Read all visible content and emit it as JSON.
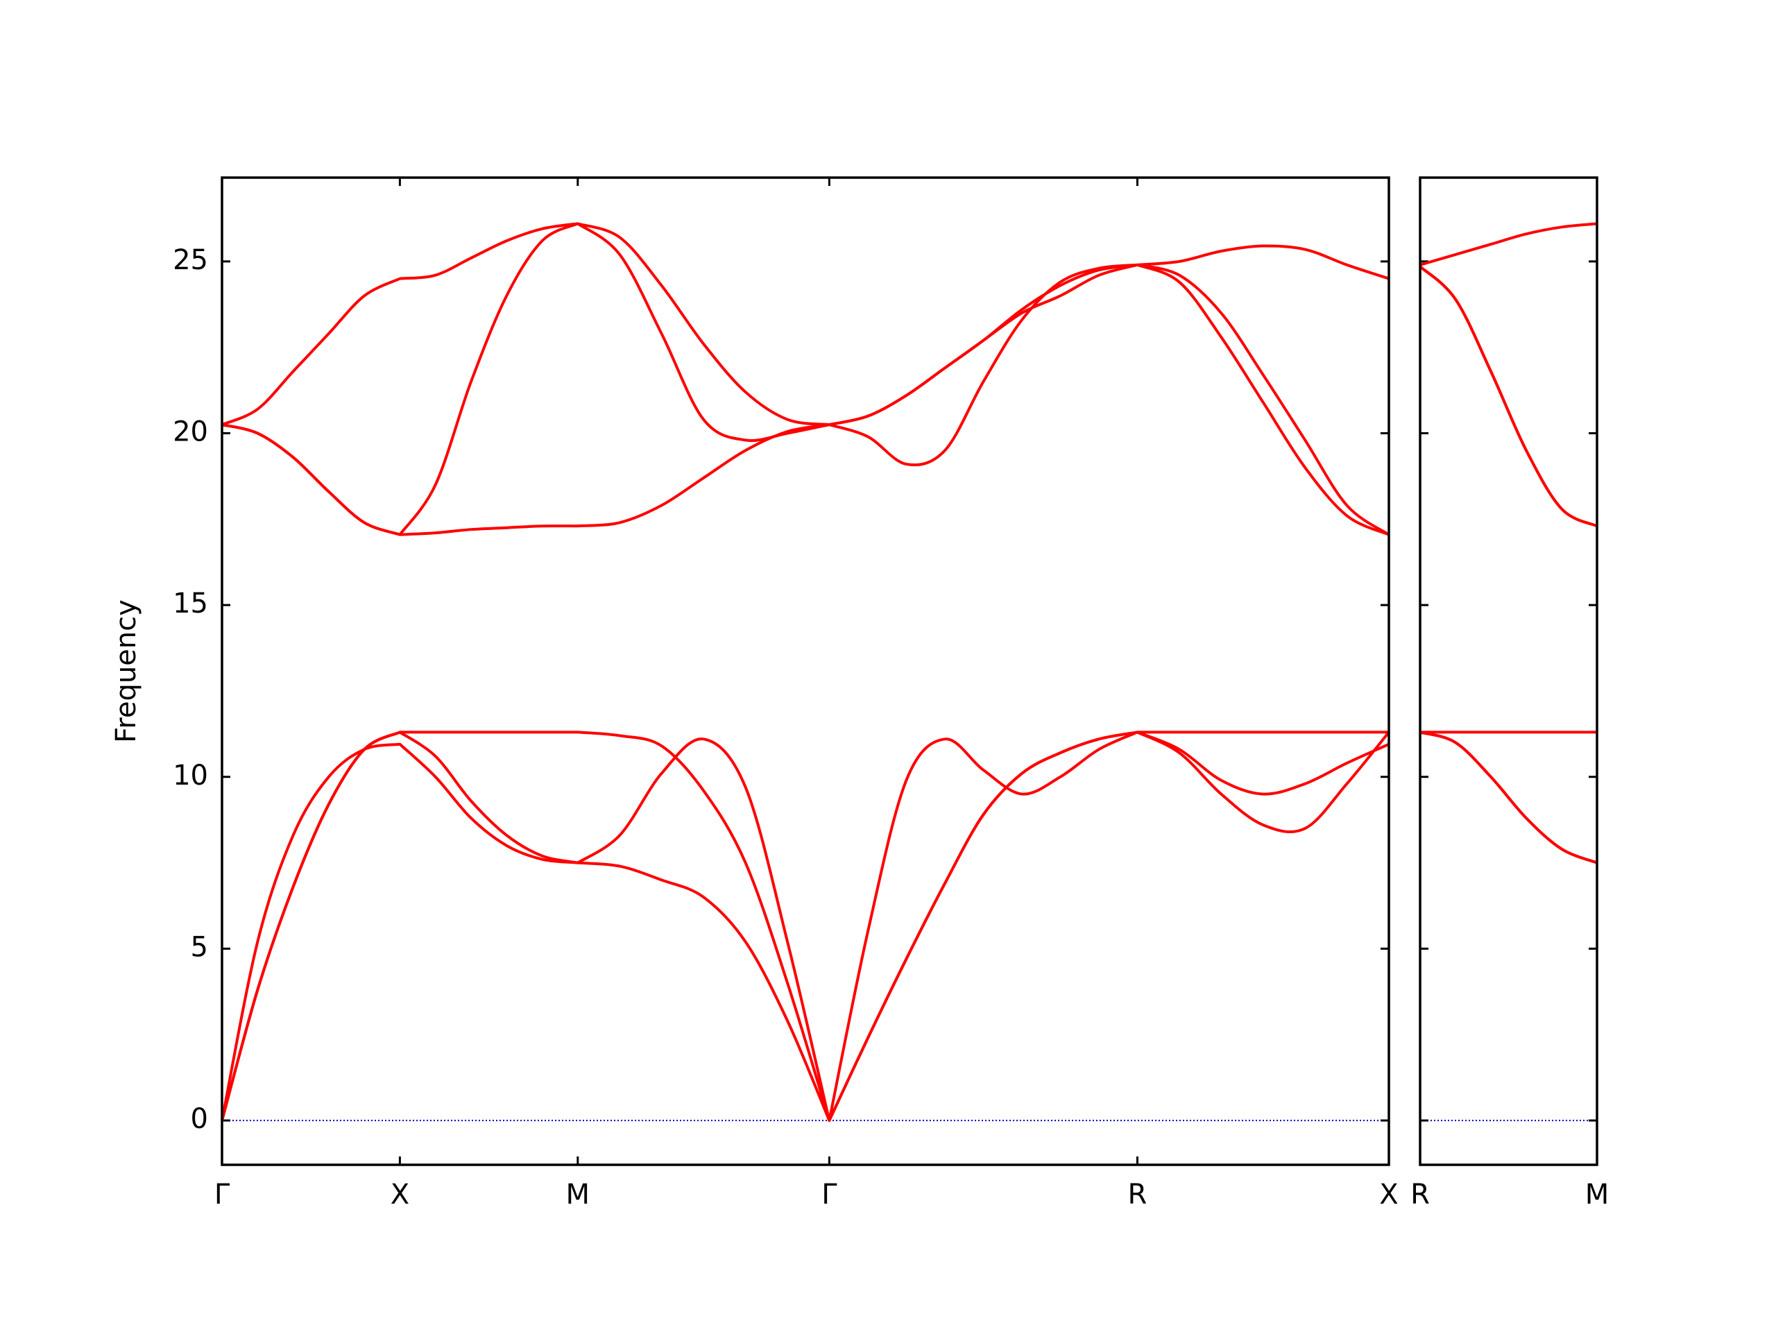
{
  "chart_data": [
    {
      "type": "line",
      "ylabel": "Frequency",
      "x": [
        0,
        0.2,
        0.4,
        0.6,
        0.8,
        1,
        1.2,
        1.4,
        1.6,
        1.8,
        2,
        2.236,
        2.471,
        2.707,
        2.943,
        3.179,
        3.414,
        3.631,
        3.847,
        4.064,
        4.28,
        4.497,
        4.713,
        4.93,
        5.146,
        5.382,
        5.617,
        5.853,
        6.089,
        6.324,
        6.56
      ],
      "xlim": [
        0,
        6.56
      ],
      "xticks": [
        {
          "value": 0,
          "label": "Γ"
        },
        {
          "value": 1,
          "label": "X"
        },
        {
          "value": 2,
          "label": "M"
        },
        {
          "value": 3.414,
          "label": "Γ"
        },
        {
          "value": 5.146,
          "label": "R"
        },
        {
          "value": 6.56,
          "label": "X"
        }
      ],
      "ylim": [
        -1.29,
        27.44
      ],
      "yticks": [
        0,
        5,
        10,
        15,
        20,
        25
      ],
      "show_ytick_labels": true,
      "zero_line_color": "#0000cc",
      "series": [
        {
          "color": "#ff0000",
          "values": [
            0,
            3.8,
            6.8,
            9.2,
            10.8,
            11.3,
            10.6,
            9.3,
            8.3,
            7.7,
            7.5,
            8.3,
            10.1,
            11.1,
            9.7,
            5.2,
            0,
            5.5,
            9.9,
            11.1,
            10.2,
            9.5,
            10.0,
            10.8,
            11.3,
            10.7,
            9.5,
            8.6,
            8.5,
            9.8,
            11.3
          ]
        },
        {
          "color": "#ff0000",
          "values": [
            0,
            3.8,
            6.8,
            9.2,
            10.8,
            11.3,
            11.3,
            11.3,
            11.3,
            11.3,
            11.3,
            11.2,
            10.9,
            9.6,
            7.5,
            4.0,
            0,
            2.4,
            4.7,
            6.9,
            8.9,
            10.1,
            10.7,
            11.1,
            11.3,
            11.3,
            11.3,
            11.3,
            11.3,
            11.3,
            11.3
          ]
        },
        {
          "color": "#ff0000",
          "values": [
            0,
            5.2,
            8.3,
            10.0,
            10.8,
            10.95,
            10.0,
            8.8,
            8.0,
            7.6,
            7.5,
            7.4,
            7.0,
            6.5,
            5.2,
            2.9,
            0,
            2.4,
            4.7,
            6.9,
            8.9,
            10.1,
            10.7,
            11.1,
            11.3,
            10.8,
            9.9,
            9.5,
            9.8,
            10.4,
            10.95
          ]
        },
        {
          "color": "#ff0000",
          "values": [
            20.25,
            20.0,
            19.3,
            18.3,
            17.4,
            17.05,
            17.1,
            17.2,
            17.25,
            17.3,
            17.3,
            17.4,
            17.9,
            18.7,
            19.5,
            20.05,
            20.25,
            19.9,
            19.1,
            19.5,
            21.5,
            23.3,
            24.4,
            24.8,
            24.9,
            24.4,
            22.8,
            20.9,
            19.0,
            17.6,
            17.05
          ]
        },
        {
          "color": "#ff0000",
          "values": [
            20.25,
            20.0,
            19.3,
            18.3,
            17.4,
            17.05,
            18.5,
            21.5,
            24.0,
            25.6,
            26.1,
            25.2,
            22.9,
            20.4,
            19.8,
            20.0,
            20.25,
            20.5,
            21.1,
            21.9,
            22.7,
            23.5,
            24.0,
            24.6,
            24.9,
            24.6,
            23.5,
            21.7,
            19.8,
            17.9,
            17.05
          ]
        },
        {
          "color": "#ff0000",
          "values": [
            20.25,
            20.7,
            21.8,
            22.9,
            24.0,
            24.5,
            24.6,
            25.1,
            25.6,
            25.95,
            26.1,
            25.7,
            24.3,
            22.6,
            21.2,
            20.4,
            20.25,
            20.5,
            21.1,
            21.9,
            22.7,
            23.6,
            24.3,
            24.75,
            24.9,
            25.0,
            25.3,
            25.45,
            25.35,
            24.9,
            24.5
          ]
        }
      ]
    },
    {
      "type": "line",
      "x": [
        0,
        0.2,
        0.4,
        0.6,
        0.8,
        1
      ],
      "xlim": [
        0,
        1
      ],
      "xticks": [
        {
          "value": 0,
          "label": "R"
        },
        {
          "value": 1,
          "label": "M"
        }
      ],
      "ylim": [
        -1.29,
        27.44
      ],
      "yticks": [
        0,
        5,
        10,
        15,
        20,
        25
      ],
      "show_ytick_labels": false,
      "zero_line_color": "#0000cc",
      "series": [
        {
          "color": "#ff0000",
          "values": [
            11.3,
            11.0,
            10.0,
            8.8,
            7.9,
            7.5
          ]
        },
        {
          "color": "#ff0000",
          "values": [
            11.3,
            11.0,
            10.0,
            8.8,
            7.9,
            7.5
          ]
        },
        {
          "color": "#ff0000",
          "values": [
            11.3,
            11.3,
            11.3,
            11.3,
            11.3,
            11.3
          ]
        },
        {
          "color": "#ff0000",
          "values": [
            24.85,
            23.9,
            21.8,
            19.5,
            17.8,
            17.3
          ]
        },
        {
          "color": "#ff0000",
          "values": [
            24.85,
            23.9,
            21.8,
            19.5,
            17.8,
            17.3
          ]
        },
        {
          "color": "#ff0000",
          "values": [
            24.9,
            25.2,
            25.5,
            25.8,
            26.0,
            26.1
          ]
        }
      ]
    }
  ]
}
